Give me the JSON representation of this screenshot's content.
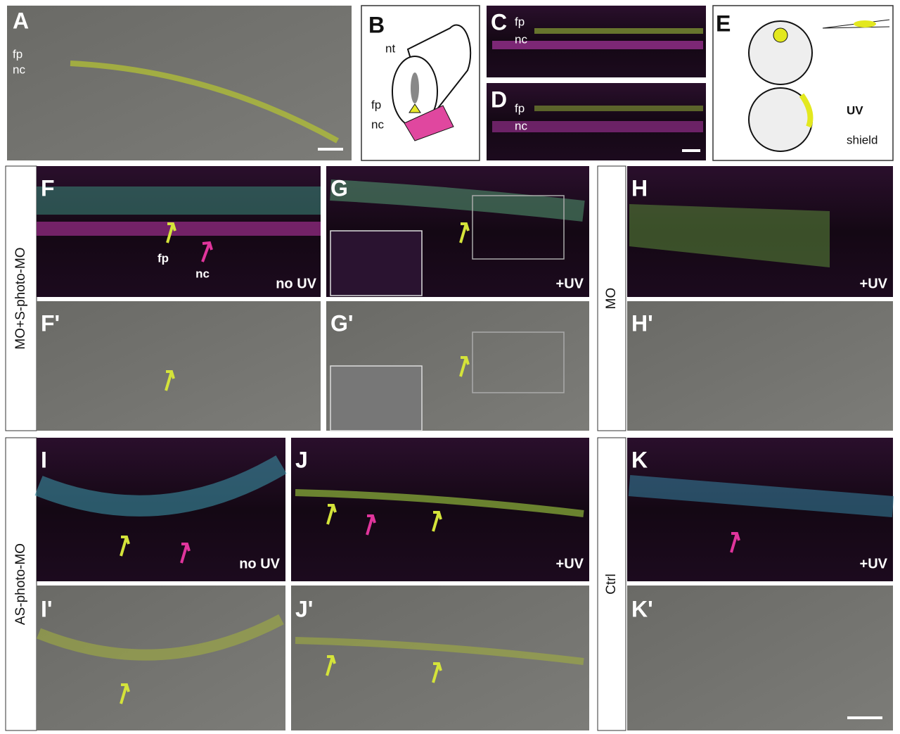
{
  "panels": [
    {
      "label": "A",
      "annotations": [
        "fp",
        "nc"
      ]
    },
    {
      "label": "B",
      "annotations": [
        "nt",
        "fp",
        "nc"
      ]
    },
    {
      "label": "C",
      "annotations": [
        "fp",
        "nc"
      ]
    },
    {
      "label": "D",
      "annotations": [
        "fp",
        "nc"
      ]
    },
    {
      "label": "E",
      "annotations": [
        "UV",
        "shield"
      ]
    },
    {
      "label": "F",
      "annotations": [
        "fp",
        "nc",
        "no UV"
      ]
    },
    {
      "label": "F'"
    },
    {
      "label": "G",
      "annotations": [
        "+UV"
      ]
    },
    {
      "label": "G'"
    },
    {
      "label": "H",
      "annotations": [
        "+UV"
      ]
    },
    {
      "label": "H'"
    },
    {
      "label": "I",
      "annotations": [
        "no UV"
      ]
    },
    {
      "label": "I'"
    },
    {
      "label": "J",
      "annotations": [
        "+UV"
      ]
    },
    {
      "label": "J'"
    },
    {
      "label": "K",
      "annotations": [
        "+UV"
      ]
    },
    {
      "label": "K'"
    }
  ],
  "row_labels": [
    "MO+S-photo-MO",
    "MO",
    "AS-photo-MO",
    "Ctrl"
  ]
}
